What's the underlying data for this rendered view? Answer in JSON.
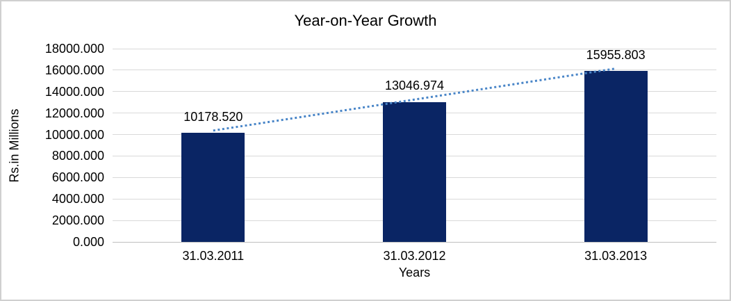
{
  "chart_data": {
    "type": "bar",
    "title": "Year-on-Year Growth",
    "xlabel": "Years",
    "ylabel": "Rs.in Millions",
    "categories": [
      "31.03.2011",
      "31.03.2012",
      "31.03.2013"
    ],
    "values": [
      10178.52,
      13046.974,
      15955.803
    ],
    "value_labels": [
      "10178.520",
      "13046.974",
      "15955.803"
    ],
    "ylim": [
      0,
      18000
    ],
    "ytick_step": 2000,
    "ytick_labels": [
      "0.000",
      "2000.000",
      "4000.000",
      "6000.000",
      "8000.000",
      "10000.000",
      "12000.000",
      "14000.000",
      "16000.000",
      "18000.000"
    ],
    "grid": true,
    "legend": "none",
    "trendline": {
      "type": "linear",
      "style": "dotted",
      "from_category": "31.03.2011",
      "to_category": "31.03.2013"
    },
    "colors": {
      "bar": "#0A2564",
      "trendline": "#4A86C8",
      "gridline": "#D9D9D9",
      "axis_line": "#BFBFBF",
      "text": "#000000",
      "border": "#CFCFCF"
    }
  }
}
